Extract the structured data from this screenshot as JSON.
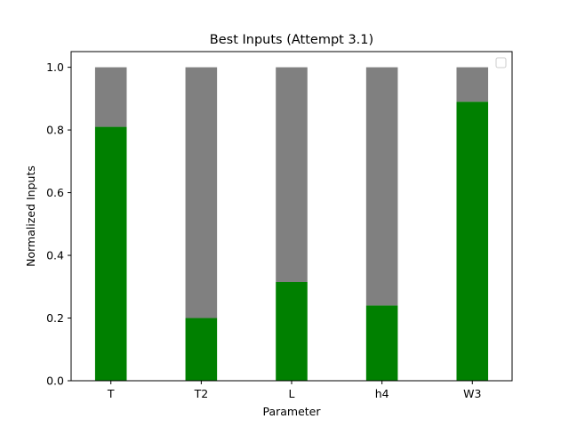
{
  "chart_data": {
    "type": "bar",
    "title": "Best Inputs (Attempt 3.1)",
    "xlabel": "Parameter",
    "ylabel": "Normalized Inputs",
    "categories": [
      "T",
      "T2",
      "L",
      "h4",
      "W3"
    ],
    "series": [
      {
        "values": [
          0.81,
          0.2,
          0.315,
          0.24,
          0.89
        ],
        "color": "#008000"
      },
      {
        "values": [
          0.19,
          0.8,
          0.685,
          0.76,
          0.11
        ],
        "color": "#808080"
      }
    ],
    "stacked": true,
    "ylim": [
      0.0,
      1.05
    ],
    "yticks": [
      "0.0",
      "0.2",
      "0.4",
      "0.6",
      "0.8",
      "1.0"
    ],
    "grid": false,
    "legend": {
      "placement": "top-right",
      "entries": []
    }
  }
}
